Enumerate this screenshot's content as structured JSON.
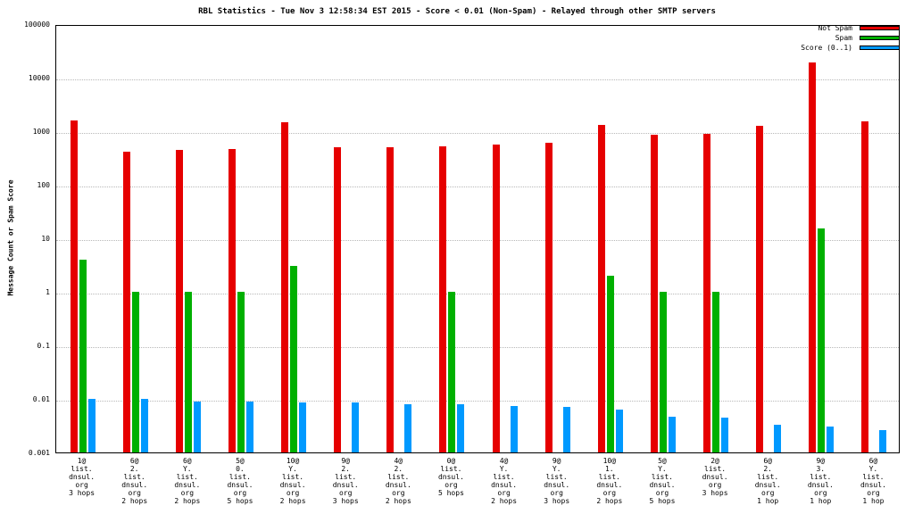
{
  "title": "RBL Statistics - Tue Nov  3 12:58:34 EST 2015 - Score < 0.01 (Non-Spam) - Relayed through other SMTP servers",
  "ylabel": "Message Count or Spam Score",
  "legend": [
    {
      "label": "Not Spam",
      "color": "#e60000"
    },
    {
      "label": "Spam",
      "color": "#00b000"
    },
    {
      "label": "Score (0..1)",
      "color": "#0099ff"
    }
  ],
  "chart_data": {
    "type": "bar",
    "scale": "log",
    "ylim": [
      0.001,
      100000
    ],
    "yticks": [
      "100000",
      "10000",
      "1000",
      "100",
      "10",
      "1",
      "0.1",
      "0.01",
      "0.001"
    ],
    "grid": true,
    "legend_position": "top-right",
    "title": "RBL Statistics - Tue Nov  3 12:58:34 EST 2015 - Score < 0.01 (Non-Spam) - Relayed through other SMTP servers",
    "xlabel": "",
    "ylabel": "Message Count or Spam Score",
    "categories": [
      [
        "1@",
        "list.",
        "dnsul.",
        "org",
        "3 hops"
      ],
      [
        "6@",
        "2.",
        "list.",
        "dnsul.",
        "org",
        "2 hops"
      ],
      [
        "6@",
        "Y.",
        "list.",
        "dnsul.",
        "org",
        "2 hops"
      ],
      [
        "5@",
        "0.",
        "list.",
        "dnsul.",
        "org",
        "5 hops"
      ],
      [
        "10@",
        "Y.",
        "list.",
        "dnsul.",
        "org",
        "2 hops"
      ],
      [
        "9@",
        "2.",
        "list.",
        "dnsul.",
        "org",
        "3 hops"
      ],
      [
        "4@",
        "2.",
        "list.",
        "dnsul.",
        "org",
        "2 hops"
      ],
      [
        "0@",
        "list.",
        "dnsul.",
        "org",
        "5 hops"
      ],
      [
        "4@",
        "Y.",
        "list.",
        "dnsul.",
        "org",
        "2 hops"
      ],
      [
        "9@",
        "Y.",
        "list.",
        "dnsul.",
        "org",
        "3 hops"
      ],
      [
        "10@",
        "1.",
        "list.",
        "dnsul.",
        "org",
        "2 hops"
      ],
      [
        "5@",
        "Y.",
        "list.",
        "dnsul.",
        "org",
        "5 hops"
      ],
      [
        "2@",
        "list.",
        "dnsul.",
        "org",
        "3 hops"
      ],
      [
        "6@",
        "2.",
        "list.",
        "dnsul.",
        "org",
        "1 hop"
      ],
      [
        "9@",
        "3.",
        "list.",
        "dnsul.",
        "org",
        "1 hop"
      ],
      [
        "6@",
        "Y.",
        "list.",
        "dnsul.",
        "org",
        "1 hop"
      ]
    ],
    "series": [
      {
        "name": "Not Spam",
        "color": "#e60000",
        "values": [
          1600,
          420,
          450,
          470,
          1450,
          500,
          500,
          520,
          560,
          600,
          1300,
          870,
          890,
          1250,
          19000,
          1500
        ]
      },
      {
        "name": "Spam",
        "color": "#00b000",
        "values": [
          4,
          1,
          1,
          1,
          3,
          0,
          0,
          1,
          0,
          0,
          2,
          1,
          1,
          0,
          15,
          0
        ]
      },
      {
        "name": "Score (0..1)",
        "color": "#0099ff",
        "values": [
          0.01,
          0.01,
          0.009,
          0.009,
          0.0085,
          0.0085,
          0.008,
          0.0078,
          0.0075,
          0.007,
          0.0063,
          0.0046,
          0.0045,
          0.0033,
          0.0031,
          0.0026
        ]
      }
    ]
  }
}
